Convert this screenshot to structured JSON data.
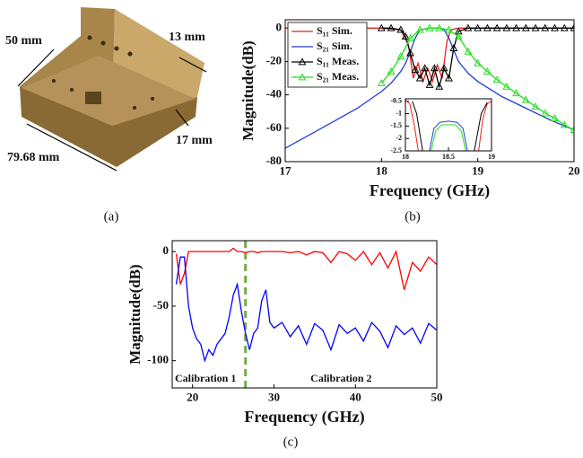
{
  "photo": {
    "labels": [
      "50 mm",
      "13 mm",
      "17 mm",
      "79.68 mm"
    ],
    "caption": "(a)"
  },
  "chart_data": [
    {
      "type": "line",
      "caption": "(b)",
      "xlabel": "Frequency (GHz)",
      "ylabel": "Magnitude(dB)",
      "xlim": [
        17,
        20
      ],
      "ylim": [
        -80,
        5
      ],
      "xticks": [
        17,
        18,
        19,
        20
      ],
      "yticks": [
        0,
        -20,
        -40,
        -60,
        -80
      ],
      "legend": "upper left",
      "series": [
        {
          "name": "S₁₁ Sim.",
          "color": "#e8211d",
          "x": [
            17,
            18,
            18.2,
            18.28,
            18.33,
            18.38,
            18.43,
            18.48,
            18.53,
            18.58,
            18.63,
            18.68,
            18.72,
            18.8,
            19,
            20
          ],
          "values": [
            0,
            0,
            -1,
            -10,
            -30,
            -21,
            -32,
            -24,
            -32,
            -22,
            -30,
            -8,
            -1,
            0,
            0,
            0
          ]
        },
        {
          "name": "S₂₁ Sim.",
          "color": "#1f3fd6",
          "x": [
            17,
            17.25,
            17.5,
            17.75,
            18,
            18.1,
            18.2,
            18.25,
            18.3,
            18.35,
            18.4,
            18.5,
            18.6,
            18.65,
            18.7,
            18.75,
            18.8,
            18.9,
            19,
            19.25,
            19.5,
            19.75,
            20
          ],
          "values": [
            -72,
            -64,
            -56,
            -48,
            -38,
            -33,
            -26,
            -21,
            -14,
            -6,
            -1,
            0,
            0,
            -1,
            -6,
            -13,
            -20,
            -27,
            -32,
            -41,
            -48,
            -55,
            -61
          ]
        },
        {
          "name": "S₁₁ Meas.",
          "color": "#000000",
          "marker": "triangle",
          "x": [
            18,
            18.1,
            18.2,
            18.25,
            18.3,
            18.35,
            18.4,
            18.45,
            18.5,
            18.55,
            18.6,
            18.65,
            18.7,
            18.75,
            18.8,
            18.9,
            19,
            19.1,
            19.2,
            19.3,
            19.4,
            19.5,
            19.6,
            19.7,
            19.8,
            19.9,
            20
          ],
          "values": [
            0,
            0,
            -1,
            -5,
            -15,
            -25,
            -30,
            -24,
            -34,
            -24,
            -35,
            -24,
            -30,
            -12,
            -2,
            0,
            0,
            0,
            0,
            0,
            0,
            0,
            0,
            0,
            0,
            0,
            0
          ]
        },
        {
          "name": "S₂₁ Meas.",
          "color": "#22e01e",
          "marker": "triangle",
          "x": [
            18,
            18.1,
            18.2,
            18.3,
            18.4,
            18.5,
            18.6,
            18.7,
            18.8,
            18.9,
            19,
            19.1,
            19.2,
            19.3,
            19.4,
            19.5,
            19.6,
            19.7,
            19.8,
            19.9,
            20
          ],
          "values": [
            -33,
            -26,
            -17,
            -6,
            -1,
            0,
            0,
            -1,
            -5,
            -14,
            -21,
            -26,
            -31,
            -35,
            -39,
            -43,
            -47,
            -51,
            -54,
            -58,
            -61
          ]
        }
      ]
    },
    {
      "type": "line",
      "xlim": [
        18,
        19
      ],
      "ylim": [
        -2.5,
        -0.4
      ],
      "xticks": [
        18,
        18.5,
        19
      ],
      "yticks": [
        -0.5,
        -1,
        -1.5,
        -2,
        -2.5
      ],
      "series": [
        {
          "color": "#e8211d",
          "x": [
            18,
            18.05,
            18.1,
            18.15,
            null,
            18.85,
            18.9,
            18.95,
            19
          ],
          "values": [
            -0.45,
            -0.6,
            -1.4,
            -2.5,
            null,
            -2.5,
            -1.2,
            -0.6,
            -0.5
          ]
        },
        {
          "color": "#000000",
          "x": [
            18.08,
            18.13,
            18.2,
            null,
            18.8,
            18.88,
            18.95
          ],
          "values": [
            -0.5,
            -1,
            -2.5,
            null,
            -2.5,
            -1,
            -0.55
          ]
        },
        {
          "color": "#1f3fd6",
          "x": [
            18.28,
            18.33,
            18.4,
            18.5,
            18.6,
            18.67,
            18.72
          ],
          "values": [
            -2.5,
            -1.6,
            -1.35,
            -1.3,
            -1.35,
            -1.6,
            -2.5
          ]
        },
        {
          "color": "#22e01e",
          "x": [
            18.3,
            18.35,
            18.42,
            18.5,
            18.58,
            18.65,
            18.7
          ],
          "values": [
            -2.5,
            -1.7,
            -1.45,
            -1.45,
            -1.45,
            -1.7,
            -2.5
          ]
        }
      ]
    },
    {
      "type": "line",
      "caption": "(c)",
      "xlabel": "Frequency (GHz)",
      "ylabel": "Magnitude(dB)",
      "xlim": [
        17.5,
        50
      ],
      "ylim": [
        -125,
        10
      ],
      "xticks": [
        20,
        30,
        40,
        50
      ],
      "yticks": [
        0,
        -50,
        -100
      ],
      "vlines": [
        26.5
      ],
      "vline_color": "#70ad47",
      "annotations": [
        "Calibration 1",
        "Calibration 2"
      ],
      "series": [
        {
          "color": "#ff0000",
          "x": [
            18,
            18.5,
            19,
            19.5,
            20,
            20.5,
            21,
            21.5,
            22,
            22.5,
            23,
            23.5,
            24,
            24.5,
            25,
            25.5,
            26,
            26.5,
            27,
            27.5,
            28,
            28.5,
            29,
            29.5,
            30,
            31,
            32,
            33,
            34,
            35,
            36,
            37,
            38,
            39,
            40,
            41,
            42,
            43,
            44,
            45,
            46,
            47,
            48,
            49,
            50
          ],
          "values": [
            -2,
            -30,
            -20,
            0,
            0,
            0,
            0,
            0,
            0,
            0,
            0,
            0,
            0,
            0,
            3,
            0,
            0,
            -1,
            0,
            0,
            -1,
            0,
            0,
            0,
            0,
            0,
            -1,
            0,
            -3,
            0,
            -1,
            -10,
            0,
            -2,
            -8,
            0,
            -12,
            -1,
            -15,
            0,
            -35,
            -10,
            -18,
            -5,
            -12
          ]
        },
        {
          "color": "#0000ff",
          "x": [
            18,
            18.5,
            19,
            19.5,
            20,
            20.5,
            21,
            21.5,
            22,
            22.5,
            23,
            23.5,
            24,
            24.5,
            25,
            25.5,
            26,
            26.5,
            27,
            27.5,
            28,
            28.5,
            29,
            29.5,
            30,
            31,
            32,
            33,
            34,
            35,
            36,
            37,
            38,
            39,
            40,
            41,
            42,
            43,
            44,
            45,
            46,
            47,
            48,
            49,
            50
          ],
          "values": [
            -30,
            -5,
            -5,
            -50,
            -70,
            -80,
            -85,
            -100,
            -90,
            -95,
            -85,
            -80,
            -75,
            -60,
            -40,
            -30,
            -55,
            -75,
            -90,
            -75,
            -70,
            -45,
            -35,
            -65,
            -70,
            -65,
            -78,
            -68,
            -85,
            -66,
            -72,
            -90,
            -67,
            -75,
            -70,
            -82,
            -65,
            -73,
            -88,
            -68,
            -76,
            -70,
            -84,
            -66,
            -72
          ]
        }
      ]
    }
  ]
}
